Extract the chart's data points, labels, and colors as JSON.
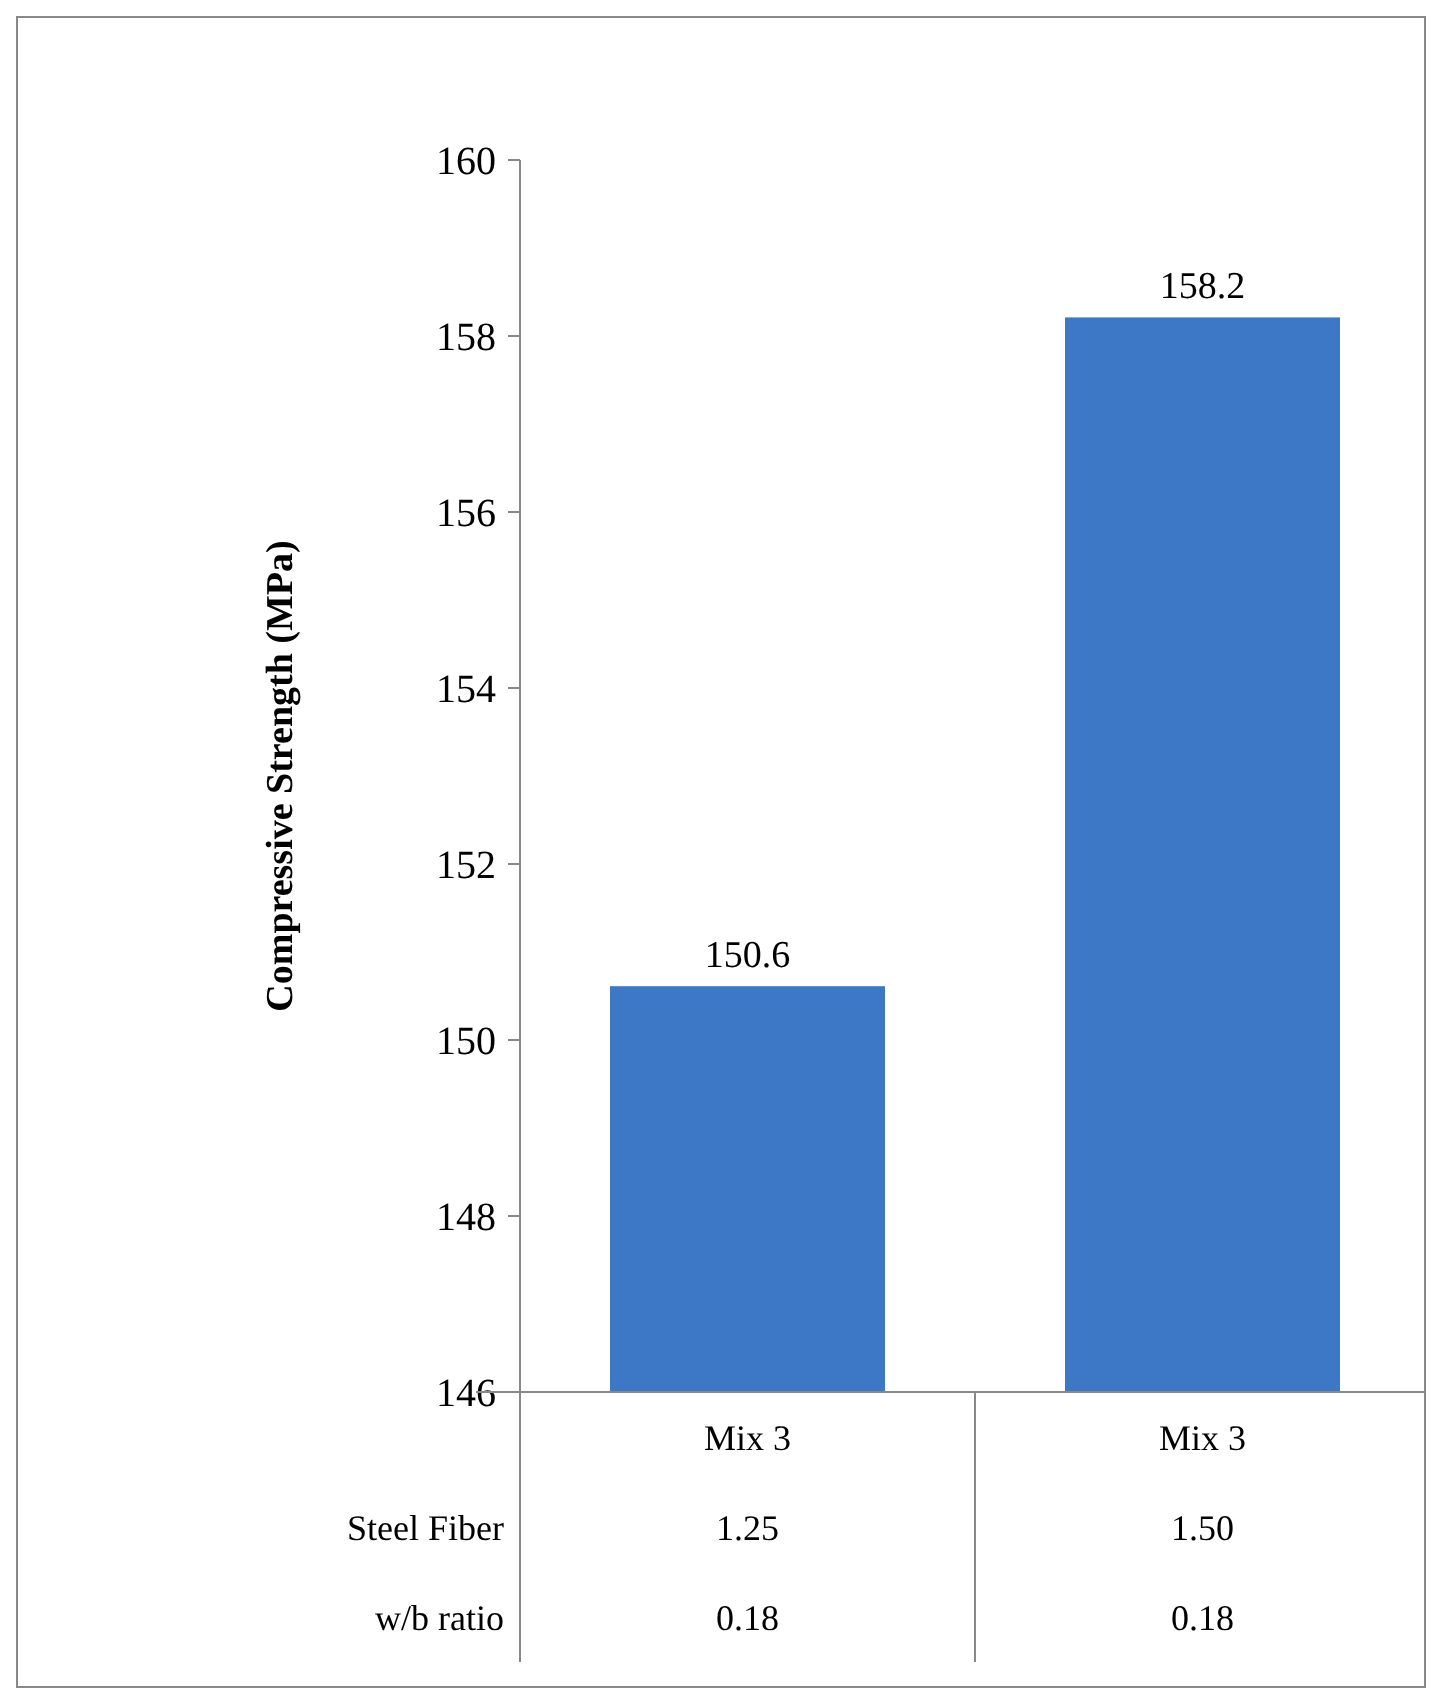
{
  "chart_data": {
    "type": "bar",
    "ylabel": "Compressive Strength (MPa)",
    "categories": [
      "Mix 3",
      "Mix 3"
    ],
    "series": [
      {
        "color": "#3d78c6",
        "values": [
          150.6,
          158.2
        ]
      }
    ],
    "ylim": [
      146,
      160
    ],
    "yticks": [
      146,
      148,
      150,
      152,
      154,
      156,
      158,
      160
    ],
    "data_labels": true,
    "grid": false,
    "annotations": [
      "Steel Fiber",
      "1.25",
      "1.50",
      "w/b ratio",
      "0.18",
      "0.18"
    ]
  }
}
